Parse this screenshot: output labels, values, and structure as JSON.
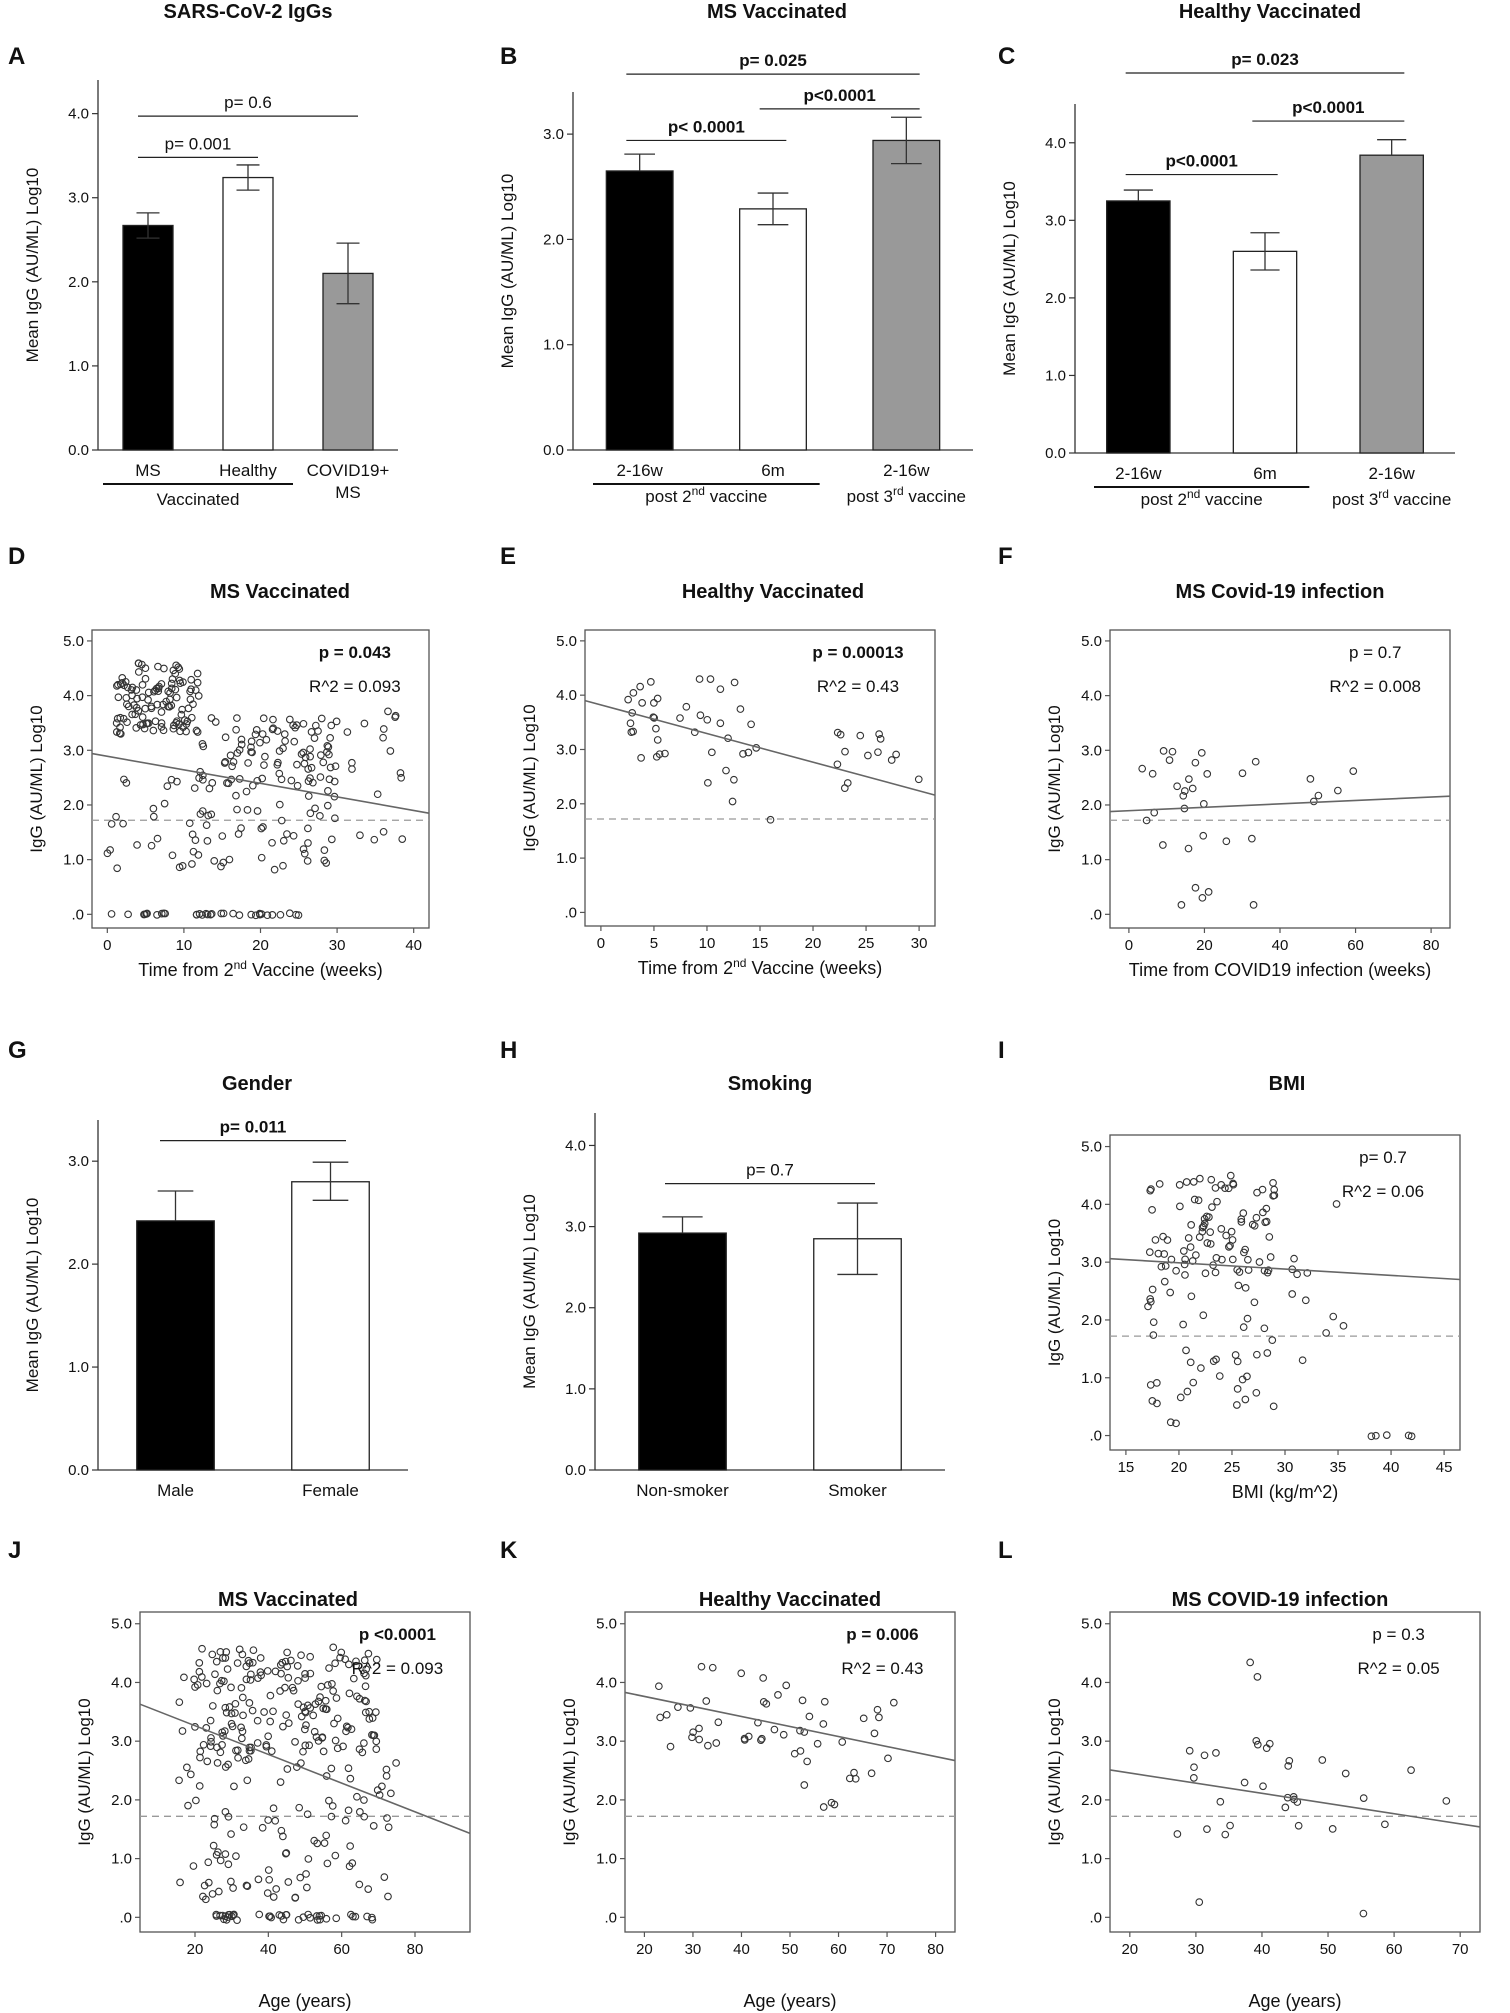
{
  "figure": {
    "panel_letters": [
      "A",
      "B",
      "C",
      "D",
      "E",
      "F",
      "G",
      "H",
      "I",
      "J",
      "K",
      "L"
    ]
  },
  "chart_data": [
    {
      "id": "A",
      "type": "bar",
      "title": "SARS-CoV-2 IgGs",
      "ylabel": "Mean  IgG (AU/ML)  Log10",
      "yticks": [
        "0.0",
        "1.0",
        "2.0",
        "3.0",
        "4.0"
      ],
      "ytick_values": [
        0,
        1,
        2,
        3,
        4
      ],
      "ylim": [
        0,
        4.4
      ],
      "categories": [
        "MS",
        "Healthy",
        "COVID19+"
      ],
      "category_sublabels": [
        "",
        "",
        "MS"
      ],
      "values": [
        2.67,
        3.24,
        2.1
      ],
      "errors": [
        [
          2.52,
          2.82
        ],
        [
          3.09,
          3.39
        ],
        [
          1.74,
          2.46
        ]
      ],
      "fills": [
        "#000000",
        "#ffffff",
        "#999999"
      ],
      "group_lines": [
        {
          "label": "Vaccinated",
          "from": 0,
          "to": 1
        }
      ],
      "comparisons": [
        {
          "text": "p= 0.001",
          "from": 0,
          "to": 1,
          "y": 3.48,
          "bold": false
        },
        {
          "text": "p= 0.6",
          "from": 0,
          "to": 2,
          "y": 3.97,
          "bold": false
        }
      ]
    },
    {
      "id": "B",
      "type": "bar",
      "title": "MS Vaccinated",
      "ylabel": "Mean  IgG (AU/ML) Log10",
      "yticks": [
        "0.0",
        "1.0",
        "2.0",
        "3.0"
      ],
      "ytick_values": [
        0,
        1,
        2,
        3
      ],
      "ylim": [
        0,
        3.4
      ],
      "categories": [
        "2-16w",
        "6m",
        "2-16w"
      ],
      "values": [
        2.65,
        2.29,
        2.94
      ],
      "errors": [
        [
          2.65,
          2.81
        ],
        [
          2.14,
          2.44
        ],
        [
          2.72,
          3.16
        ]
      ],
      "fills": [
        "#000000",
        "#ffffff",
        "#999999"
      ],
      "group_labels": [
        {
          "prefix": "post 2",
          "sup": "nd",
          "suffix": " vaccine",
          "from": 0,
          "to": 1,
          "line": true
        },
        {
          "prefix": "post 3",
          "sup": "rd",
          "suffix": " vaccine",
          "from": 2,
          "to": 2,
          "line": false
        }
      ],
      "comparisons": [
        {
          "text": "p< 0.0001",
          "from": 0,
          "to": 1,
          "y": 2.94,
          "bold": true
        },
        {
          "text": "p<0.0001",
          "from": 1,
          "to": 2,
          "y": 3.24,
          "bold": true
        },
        {
          "text": "p= 0.025",
          "from": 0,
          "to": 2,
          "y": 3.57,
          "bold": true
        }
      ]
    },
    {
      "id": "C",
      "type": "bar",
      "title": "Healthy Vaccinated",
      "ylabel": "Mean IgG (AU/ML) Log10",
      "yticks": [
        "0.0",
        "1.0",
        "2.0",
        "3.0",
        "4.0"
      ],
      "ytick_values": [
        0,
        1,
        2,
        3,
        4
      ],
      "ylim": [
        0,
        4.5
      ],
      "categories": [
        "2-16w",
        "6m",
        "2-16w"
      ],
      "values": [
        3.25,
        2.6,
        3.84
      ],
      "errors": [
        [
          3.25,
          3.39
        ],
        [
          2.36,
          2.84
        ],
        [
          3.84,
          4.04
        ]
      ],
      "fills": [
        "#000000",
        "#ffffff",
        "#999999"
      ],
      "group_labels": [
        {
          "prefix": "post 2",
          "sup": "nd",
          "suffix": " vaccine",
          "from": 0,
          "to": 1,
          "line": true
        },
        {
          "prefix": "post 3",
          "sup": "rd",
          "suffix": " vaccine",
          "from": 2,
          "to": 2,
          "line": false
        }
      ],
      "comparisons": [
        {
          "text": "p<0.0001",
          "from": 0,
          "to": 1,
          "y": 3.59,
          "bold": true
        },
        {
          "text": "p<0.0001",
          "from": 1,
          "to": 2,
          "y": 4.28,
          "bold": true
        },
        {
          "text": "p= 0.023",
          "from": 0,
          "to": 2,
          "y": 4.9,
          "bold": true
        }
      ]
    },
    {
      "id": "D",
      "type": "scatter",
      "title": "MS Vaccinated",
      "xlabel": "Time from 2",
      "xlabel_sup": "nd",
      "xlabel_suffix": " Vaccine (weeks)",
      "ylabel": "IgG (AU/ML) Log10",
      "xlim": [
        -2,
        42
      ],
      "ylim": [
        -0.25,
        5.2
      ],
      "xticks": [
        0,
        10,
        20,
        30,
        40
      ],
      "xtick_labels": [
        "0",
        "10",
        "20",
        "30",
        "40"
      ],
      "yticks": [
        0,
        1,
        2,
        3,
        4,
        5
      ],
      "ytick_labels": [
        ".0",
        "1.0",
        "2.0",
        "3.0",
        "4.0",
        "5.0"
      ],
      "p_text": "p = 0.043",
      "p_bold": true,
      "r2_text": "R^2 = 0.093",
      "fit": [
        [
          -2,
          2.94
        ],
        [
          42,
          1.85
        ]
      ],
      "threshold": 1.72,
      "seed": 11,
      "n": 330,
      "clusters": [
        {
          "xmin": 1,
          "xmax": 12,
          "ymin": 3.3,
          "ymax": 4.6,
          "frac": 0.35
        },
        {
          "xmin": 12,
          "xmax": 30,
          "ymin": 2.4,
          "ymax": 3.6,
          "frac": 0.25
        },
        {
          "xmin": 0,
          "xmax": 30,
          "ymin": 0.8,
          "ymax": 2.5,
          "frac": 0.25
        },
        {
          "xmin": 0,
          "xmax": 25,
          "ymin": -0.02,
          "ymax": 0.02,
          "frac": 0.1
        },
        {
          "xmin": 30,
          "xmax": 40,
          "ymin": 1.2,
          "ymax": 3.8,
          "frac": 0.05
        }
      ]
    },
    {
      "id": "E",
      "type": "scatter",
      "title": "Healthy Vaccinated",
      "xlabel": "Time from 2",
      "xlabel_sup": "nd",
      "xlabel_suffix": " Vaccine (weeks)",
      "ylabel": "IgG (AU/ML) Log10",
      "xlim": [
        -1.5,
        31.5
      ],
      "ylim": [
        -0.25,
        5.2
      ],
      "xticks": [
        0,
        5,
        10,
        15,
        20,
        25,
        30
      ],
      "xtick_labels": [
        "0",
        "5",
        "10",
        "15",
        "20",
        "25",
        "30"
      ],
      "yticks": [
        0,
        1,
        2,
        3,
        4,
        5
      ],
      "ytick_labels": [
        ".0",
        "1.0",
        "2.0",
        "3.0",
        "4.0",
        "5.0"
      ],
      "p_text": "p = 0.00013",
      "p_bold": true,
      "r2_text": "R^2 = 0.43",
      "fit": [
        [
          -1.5,
          3.9
        ],
        [
          31.5,
          2.16
        ]
      ],
      "threshold": 1.72,
      "seed": 23,
      "n": 55,
      "clusters": [
        {
          "xmin": 2,
          "xmax": 15,
          "ymin": 2.8,
          "ymax": 4.4,
          "frac": 0.6
        },
        {
          "xmin": 10,
          "xmax": 16,
          "ymin": 1.6,
          "ymax": 3.0,
          "frac": 0.15
        },
        {
          "xmin": 22,
          "xmax": 30,
          "ymin": 2.1,
          "ymax": 3.4,
          "frac": 0.25
        }
      ]
    },
    {
      "id": "F",
      "type": "scatter",
      "title": "MS Covid-19 infection",
      "xlabel": "Time from COVID19 infection (weeks)",
      "ylabel": "IgG (AU/ML) Log10",
      "xlim": [
        -5,
        85
      ],
      "ylim": [
        -0.25,
        5.2
      ],
      "xticks": [
        0,
        20,
        40,
        60,
        80
      ],
      "xtick_labels": [
        "0",
        "20",
        "40",
        "60",
        "80"
      ],
      "yticks": [
        0,
        1,
        2,
        3,
        4,
        5
      ],
      "ytick_labels": [
        ".0",
        "1.0",
        "2.0",
        "3.0",
        "4.0",
        "5.0"
      ],
      "p_text": "p = 0.7",
      "p_bold": false,
      "r2_text": "R^2 = 0.008",
      "fit": [
        [
          -5,
          1.88
        ],
        [
          85,
          2.16
        ]
      ],
      "threshold": 1.72,
      "seed": 37,
      "n": 34,
      "clusters": [
        {
          "xmin": 3,
          "xmax": 42,
          "ymin": 1.2,
          "ymax": 3.0,
          "frac": 0.7
        },
        {
          "xmin": 10,
          "xmax": 40,
          "ymin": -0.02,
          "ymax": 0.5,
          "frac": 0.15
        },
        {
          "xmin": 45,
          "xmax": 75,
          "ymin": 1.8,
          "ymax": 3.1,
          "frac": 0.15
        }
      ]
    },
    {
      "id": "G",
      "type": "bar",
      "title": "Gender",
      "ylabel": "Mean  IgG (AU/ML) Log10",
      "yticks": [
        "0.0",
        "1.0",
        "2.0",
        "3.0"
      ],
      "ytick_values": [
        0,
        1,
        2,
        3
      ],
      "ylim": [
        0,
        3.4
      ],
      "categories": [
        "Male",
        "Female"
      ],
      "values": [
        2.42,
        2.8
      ],
      "errors": [
        [
          2.42,
          2.71
        ],
        [
          2.62,
          2.99
        ]
      ],
      "fills": [
        "#000000",
        "#ffffff"
      ],
      "comparisons": [
        {
          "text": "p= 0.011",
          "from": 0,
          "to": 1,
          "y": 3.2,
          "bold": true
        }
      ]
    },
    {
      "id": "H",
      "type": "bar",
      "title": "Smoking",
      "ylabel": "Mean  IgG (AU/ML) Log10",
      "yticks": [
        "0.0",
        "1.0",
        "2.0",
        "3.0",
        "4.0"
      ],
      "ytick_values": [
        0,
        1,
        2,
        3,
        4
      ],
      "ylim": [
        0,
        4.4
      ],
      "categories": [
        "Non-smoker",
        "Smoker"
      ],
      "values": [
        2.92,
        2.85
      ],
      "errors": [
        [
          2.92,
          3.12
        ],
        [
          2.41,
          3.29
        ]
      ],
      "fills": [
        "#000000",
        "#ffffff"
      ],
      "comparisons": [
        {
          "text": "p= 0.7",
          "from": 0,
          "to": 1,
          "y": 3.53,
          "bold": false
        }
      ]
    },
    {
      "id": "I",
      "type": "scatter",
      "title": "BMI",
      "xlabel": "BMI (kg/m^2)",
      "ylabel": "IgG (AU/ML) Log10",
      "xlim": [
        13.5,
        46.5
      ],
      "ylim": [
        -0.25,
        5.2
      ],
      "xticks": [
        15,
        20,
        25,
        30,
        35,
        40,
        45
      ],
      "xtick_labels": [
        "15",
        "20",
        "25",
        "30",
        "35",
        "40",
        "45"
      ],
      "yticks": [
        0,
        1,
        2,
        3,
        4,
        5
      ],
      "ytick_labels": [
        ".0",
        "1.0",
        "2.0",
        "3.0",
        "4.0",
        "5.0"
      ],
      "p_text": "p= 0.7",
      "p_bold": false,
      "r2_text": "R^2 = 0.06",
      "fit": [
        [
          13.5,
          3.06
        ],
        [
          46.5,
          2.7
        ]
      ],
      "threshold": 1.72,
      "seed": 51,
      "n": 150,
      "clusters": [
        {
          "xmin": 17,
          "xmax": 29,
          "ymin": 2.8,
          "ymax": 4.5,
          "frac": 0.6
        },
        {
          "xmin": 17,
          "xmax": 29,
          "ymin": 0.2,
          "ymax": 2.8,
          "frac": 0.3
        },
        {
          "xmin": 29,
          "xmax": 36,
          "ymin": 0.7,
          "ymax": 4.6,
          "frac": 0.07
        },
        {
          "xmin": 38,
          "xmax": 42,
          "ymin": -0.02,
          "ymax": 0.02,
          "frac": 0.03
        }
      ]
    },
    {
      "id": "J",
      "type": "scatter",
      "title": "MS Vaccinated",
      "xlabel": "Age (years)",
      "ylabel": "IgG (AU/ML) Log10",
      "xlim": [
        5,
        95
      ],
      "ylim": [
        -0.25,
        5.2
      ],
      "xticks": [
        20,
        40,
        60,
        80
      ],
      "xtick_labels": [
        "20",
        "40",
        "60",
        "80"
      ],
      "yticks": [
        0,
        1,
        2,
        3,
        4,
        5
      ],
      "ytick_labels": [
        ".0",
        "1.0",
        "2.0",
        "3.0",
        "4.0",
        "5.0"
      ],
      "p_text": "p <0.0001",
      "p_bold": true,
      "r2_text": "R^2 = 0.093",
      "fit": [
        [
          5,
          3.63
        ],
        [
          95,
          1.43
        ]
      ],
      "threshold": 1.72,
      "seed": 67,
      "n": 330,
      "clusters": [
        {
          "xmin": 20,
          "xmax": 70,
          "ymin": 2.8,
          "ymax": 4.6,
          "frac": 0.55
        },
        {
          "xmin": 20,
          "xmax": 75,
          "ymin": 0.3,
          "ymax": 2.8,
          "frac": 0.3
        },
        {
          "xmin": 25,
          "xmax": 70,
          "ymin": -0.05,
          "ymax": 0.05,
          "frac": 0.12
        },
        {
          "xmin": 15,
          "xmax": 20,
          "ymin": 0.5,
          "ymax": 4.3,
          "frac": 0.03
        }
      ]
    },
    {
      "id": "K",
      "type": "scatter",
      "title": "Healthy Vaccinated",
      "xlabel": "Age (years)",
      "ylabel": "IgG (AU/ML) Log10",
      "xlim": [
        16,
        84
      ],
      "ylim": [
        -0.25,
        5.2
      ],
      "xticks": [
        20,
        30,
        40,
        50,
        60,
        70,
        80
      ],
      "xtick_labels": [
        "20",
        "30",
        "40",
        "50",
        "60",
        "70",
        "80"
      ],
      "yticks": [
        0,
        1,
        2,
        3,
        4,
        5
      ],
      "ytick_labels": [
        ".0",
        "1.0",
        "2.0",
        "3.0",
        "4.0",
        "5.0"
      ],
      "p_text": "p = 0.006",
      "p_bold": true,
      "r2_text": "R^2 = 0.43",
      "fit": [
        [
          16,
          3.83
        ],
        [
          84,
          2.67
        ]
      ],
      "threshold": 1.72,
      "seed": 79,
      "n": 55,
      "clusters": [
        {
          "xmin": 22,
          "xmax": 50,
          "ymin": 2.9,
          "ymax": 4.4,
          "frac": 0.55
        },
        {
          "xmin": 50,
          "xmax": 76,
          "ymin": 1.7,
          "ymax": 3.7,
          "frac": 0.45
        }
      ]
    },
    {
      "id": "L",
      "type": "scatter",
      "title": "MS COVID-19 infection",
      "xlabel": "Age (years)",
      "ylabel": "IgG (AU/ML) Log10",
      "xlim": [
        17,
        73
      ],
      "ylim": [
        -0.25,
        5.2
      ],
      "xticks": [
        20,
        30,
        40,
        50,
        60,
        70
      ],
      "xtick_labels": [
        "20",
        "30",
        "40",
        "50",
        "60",
        "70"
      ],
      "yticks": [
        0,
        1,
        2,
        3,
        4,
        5
      ],
      "ytick_labels": [
        ".0",
        "1.0",
        "2.0",
        "3.0",
        "4.0",
        "5.0"
      ],
      "p_text": "p = 0.3",
      "p_bold": false,
      "r2_text": "R^2 = 0.05",
      "fit": [
        [
          17,
          2.51
        ],
        [
          73,
          1.54
        ]
      ],
      "threshold": 1.72,
      "seed": 93,
      "n": 34,
      "clusters": [
        {
          "xmin": 24,
          "xmax": 45,
          "ymin": 1.2,
          "ymax": 3.1,
          "frac": 0.65
        },
        {
          "xmin": 45,
          "xmax": 68,
          "ymin": 1.4,
          "ymax": 2.7,
          "frac": 0.25
        },
        {
          "xmin": 38,
          "xmax": 40,
          "ymin": 3.8,
          "ymax": 4.4,
          "frac": 0.05
        },
        {
          "xmin": 25,
          "xmax": 60,
          "ymin": 0.0,
          "ymax": 0.5,
          "frac": 0.05
        }
      ]
    }
  ]
}
